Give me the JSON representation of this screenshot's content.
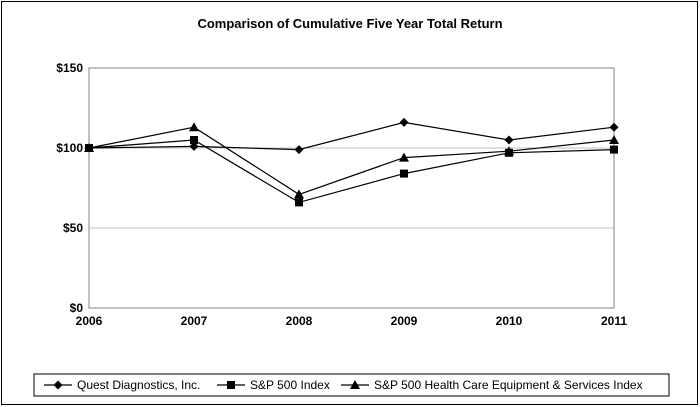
{
  "chart_data": {
    "type": "line",
    "title": "Comparison of Cumulative Five Year Total Return",
    "xlabel": "",
    "ylabel": "",
    "x": [
      "2006",
      "2007",
      "2008",
      "2009",
      "2010",
      "2011"
    ],
    "ylim": [
      0,
      150
    ],
    "yticks": [
      0,
      50,
      100,
      150
    ],
    "ytick_labels": [
      "$0",
      "$50",
      "$100",
      "$150"
    ],
    "grid": true,
    "legend_position": "bottom",
    "series": [
      {
        "name": "Quest Diagnostics, Inc.",
        "marker": "diamond",
        "color": "#000000",
        "values": [
          100,
          101,
          99,
          116,
          105,
          113
        ]
      },
      {
        "name": "S&P 500 Index",
        "marker": "square",
        "color": "#000000",
        "values": [
          100,
          105,
          66,
          84,
          97,
          99
        ]
      },
      {
        "name": "S&P 500 Health Care Equipment & Services Index",
        "marker": "triangle",
        "color": "#000000",
        "values": [
          100,
          113,
          71,
          94,
          98,
          105
        ]
      }
    ]
  }
}
